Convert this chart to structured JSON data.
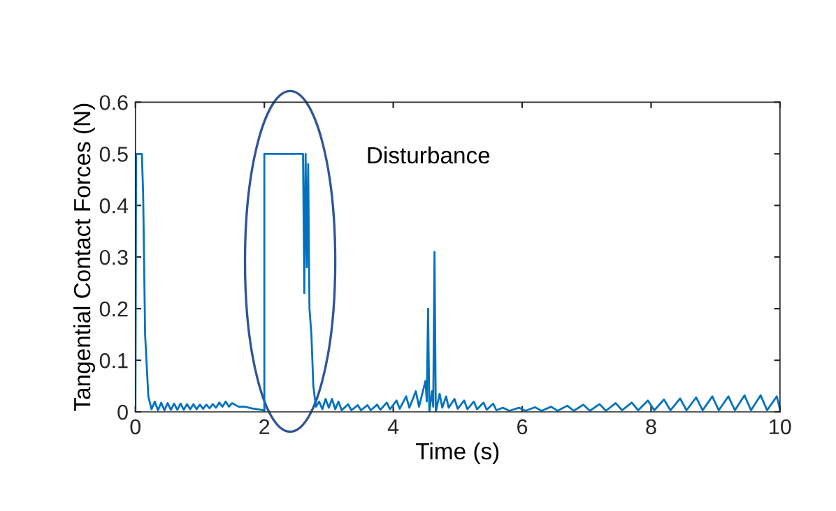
{
  "chart_data": {
    "type": "line",
    "xlabel": "Time (s)",
    "ylabel": "Tangential Contact Forces (N)",
    "xlim": [
      0,
      10
    ],
    "xticks": [
      0,
      2,
      4,
      6,
      8,
      10
    ],
    "ylim": [
      0,
      0.6
    ],
    "yticks": [
      0,
      0.1,
      0.2,
      0.3,
      0.4,
      0.5,
      0.6
    ],
    "grid": false,
    "marker": "none",
    "line_style": "solid",
    "annotations": [
      "Disturbance"
    ],
    "series": [
      {
        "color": "#0072bd",
        "x": [
          0,
          0.01,
          0.1,
          0.12,
          0.15,
          0.2,
          0.25,
          0.3,
          0.35,
          0.4,
          0.45,
          0.5,
          0.55,
          0.6,
          0.65,
          0.7,
          0.75,
          0.8,
          0.85,
          0.9,
          0.95,
          1.0,
          1.05,
          1.1,
          1.15,
          1.2,
          1.25,
          1.3,
          1.35,
          1.4,
          1.45,
          1.5,
          1.6,
          1.7,
          1.8,
          1.9,
          2.0,
          2.0,
          2.6,
          2.62,
          2.64,
          2.66,
          2.68,
          2.7,
          2.73,
          2.76,
          2.8,
          2.85,
          2.9,
          2.95,
          3.0,
          3.05,
          3.1,
          3.15,
          3.2,
          3.3,
          3.35,
          3.45,
          3.5,
          3.6,
          3.65,
          3.75,
          3.8,
          3.9,
          3.95,
          4.05,
          4.1,
          4.2,
          4.25,
          4.35,
          4.4,
          4.5,
          4.52,
          4.54,
          4.56,
          4.6,
          4.62,
          4.64,
          4.66,
          4.72,
          4.76,
          4.82,
          4.86,
          4.95,
          5.0,
          5.1,
          5.15,
          5.25,
          5.3,
          5.4,
          5.45,
          5.55,
          5.6,
          5.7,
          5.8,
          5.95,
          6.05,
          6.2,
          6.3,
          6.45,
          6.55,
          6.7,
          6.8,
          6.95,
          7.05,
          7.2,
          7.3,
          7.45,
          7.55,
          7.7,
          7.8,
          7.95,
          8.05,
          8.2,
          8.3,
          8.45,
          8.55,
          8.7,
          8.8,
          8.95,
          9.05,
          9.2,
          9.3,
          9.45,
          9.55,
          9.7,
          9.8,
          9.95,
          10
        ],
        "values": [
          0,
          0.5,
          0.5,
          0.42,
          0.15,
          0.03,
          0.005,
          0.02,
          0.003,
          0.018,
          0.003,
          0.017,
          0.004,
          0.016,
          0.004,
          0.016,
          0.004,
          0.015,
          0.005,
          0.015,
          0.005,
          0.014,
          0.006,
          0.014,
          0.007,
          0.015,
          0.008,
          0.018,
          0.01,
          0.02,
          0.01,
          0.017,
          0.01,
          0.01,
          0.007,
          0.005,
          0.003,
          0.5,
          0.5,
          0.23,
          0.5,
          0.28,
          0.48,
          0.2,
          0.15,
          0.05,
          0.01,
          0.02,
          0.005,
          0.025,
          0.008,
          0.025,
          0.005,
          0.02,
          0.003,
          0.015,
          0.003,
          0.013,
          0.003,
          0.013,
          0.003,
          0.014,
          0.004,
          0.018,
          0.005,
          0.022,
          0.006,
          0.03,
          0.008,
          0.04,
          0.01,
          0.06,
          0.02,
          0.2,
          0,
          0.04,
          0.01,
          0.31,
          0,
          0.035,
          0.008,
          0.03,
          0.008,
          0.025,
          0.006,
          0.022,
          0.005,
          0.02,
          0.005,
          0.018,
          0.004,
          0.016,
          0.003,
          0.008,
          0.002,
          0.008,
          0.002,
          0.009,
          0.002,
          0.01,
          0.002,
          0.012,
          0.002,
          0.014,
          0.002,
          0.015,
          0.002,
          0.017,
          0.003,
          0.018,
          0.003,
          0.022,
          0.003,
          0.024,
          0.003,
          0.026,
          0.003,
          0.028,
          0.003,
          0.03,
          0.003,
          0.03,
          0.003,
          0.032,
          0.003,
          0.032,
          0.003,
          0.03,
          0.005
        ]
      }
    ]
  }
}
